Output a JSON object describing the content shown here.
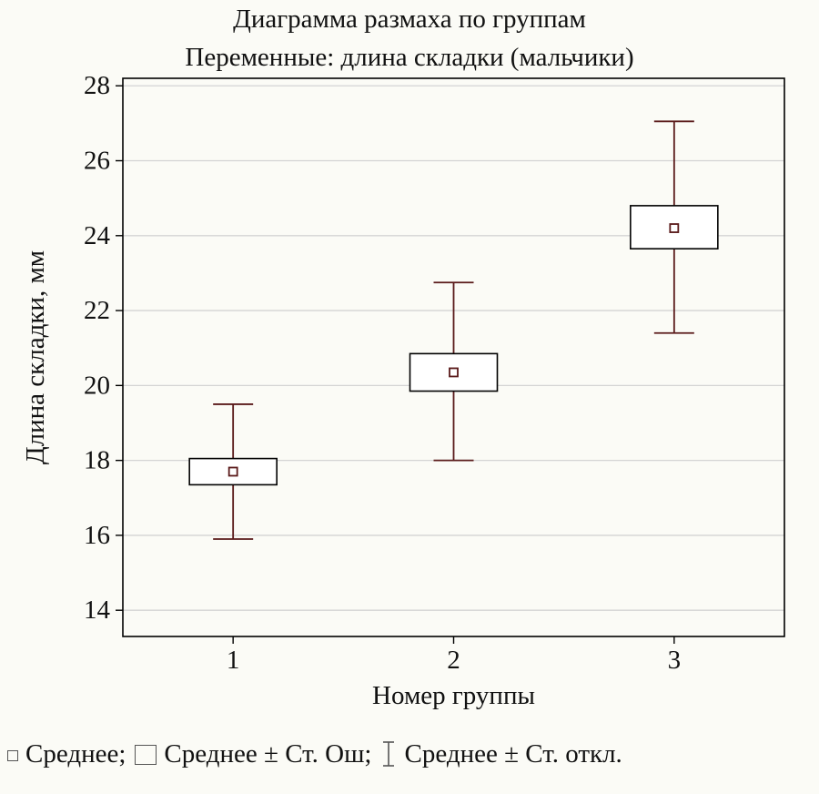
{
  "chart_data": {
    "type": "box",
    "title": "Диаграмма размаха по группам",
    "subtitle": "Переменные: длина складки (мальчики)",
    "xlabel": "Номер группы",
    "ylabel": "Длина складки, мм",
    "categories": [
      "1",
      "2",
      "3"
    ],
    "y_ticks": [
      14,
      16,
      18,
      20,
      22,
      24,
      26,
      28
    ],
    "ylim": [
      13.3,
      28.2
    ],
    "grid": true,
    "series": [
      {
        "category": "1",
        "mean": 17.7,
        "se_low": 17.35,
        "se_high": 18.05,
        "sd_low": 15.9,
        "sd_high": 19.5
      },
      {
        "category": "2",
        "mean": 20.35,
        "se_low": 19.85,
        "se_high": 20.85,
        "sd_low": 18.0,
        "sd_high": 22.75
      },
      {
        "category": "3",
        "mean": 24.2,
        "se_low": 23.65,
        "se_high": 24.8,
        "sd_low": 21.4,
        "sd_high": 27.05
      }
    ],
    "colors": {
      "whisker": "#5a1a1a",
      "box": "#000000",
      "grid": "#d4d4d4"
    }
  },
  "legend": {
    "mean": "Среднее;",
    "se": "Среднее ± Ст. Ош;",
    "sd": "Среднее ± Ст. откл."
  }
}
